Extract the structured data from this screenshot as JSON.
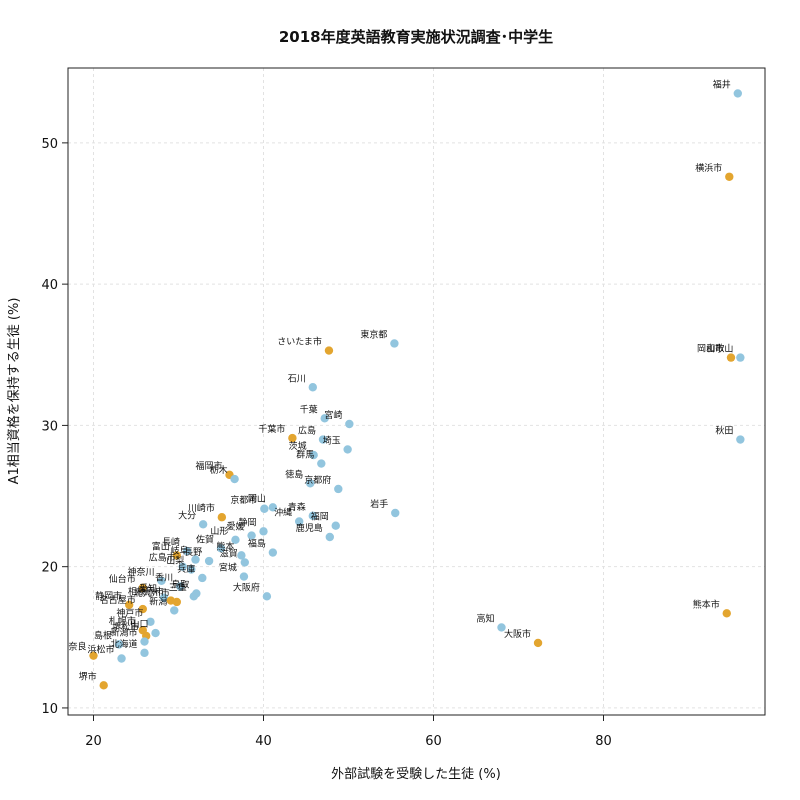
{
  "chart_data": {
    "type": "scatter",
    "title": "2018年度英語教育実施状況調査･中学生",
    "xlabel": "外部試験を受験した生徒 (%)",
    "ylabel": "A1相当資格を保持する生徒 (%)",
    "xlim": [
      17,
      99
    ],
    "ylim": [
      9.5,
      55.3
    ],
    "xticks": [
      20,
      40,
      60,
      80
    ],
    "yticks": [
      10,
      20,
      30,
      40,
      50
    ],
    "grid": true,
    "colors": {
      "prefecture": "#92c5de",
      "city": "#e3a52f"
    },
    "points": [
      {
        "x": 95.8,
        "y": 53.5,
        "label": "福井",
        "group": "prefecture"
      },
      {
        "x": 94.8,
        "y": 47.6,
        "label": "横浜市",
        "group": "city"
      },
      {
        "x": 55.4,
        "y": 35.8,
        "label": "東京都",
        "group": "prefecture"
      },
      {
        "x": 47.7,
        "y": 35.3,
        "label": "さいたま市",
        "group": "city"
      },
      {
        "x": 95.0,
        "y": 34.8,
        "label": "岡山市",
        "group": "city"
      },
      {
        "x": 96.1,
        "y": 34.8,
        "label": "和歌山",
        "group": "prefecture"
      },
      {
        "x": 45.8,
        "y": 32.7,
        "label": "石川",
        "group": "prefecture"
      },
      {
        "x": 47.2,
        "y": 30.5,
        "label": "千葉",
        "group": "prefecture"
      },
      {
        "x": 50.1,
        "y": 30.1,
        "label": "宮崎",
        "group": "prefecture"
      },
      {
        "x": 43.4,
        "y": 29.1,
        "label": "千葉市",
        "group": "city"
      },
      {
        "x": 47.0,
        "y": 29.0,
        "label": "広島",
        "group": "prefecture"
      },
      {
        "x": 96.1,
        "y": 29.0,
        "label": "秋田",
        "group": "prefecture"
      },
      {
        "x": 49.9,
        "y": 28.3,
        "label": "埼玉",
        "group": "prefecture"
      },
      {
        "x": 45.9,
        "y": 27.9,
        "label": "茨城",
        "group": "prefecture"
      },
      {
        "x": 46.8,
        "y": 27.3,
        "label": "群馬",
        "group": "prefecture"
      },
      {
        "x": 36.0,
        "y": 26.5,
        "label": "福岡市",
        "group": "city"
      },
      {
        "x": 36.6,
        "y": 26.2,
        "label": "栃木",
        "group": "prefecture"
      },
      {
        "x": 45.5,
        "y": 25.9,
        "label": "徳島",
        "group": "prefecture"
      },
      {
        "x": 48.8,
        "y": 25.5,
        "label": "京都府",
        "group": "prefecture"
      },
      {
        "x": 55.5,
        "y": 23.8,
        "label": "岩手",
        "group": "prefecture"
      },
      {
        "x": 41.1,
        "y": 24.2,
        "label": "岡山",
        "group": "prefecture"
      },
      {
        "x": 40.1,
        "y": 24.1,
        "label": "京都市",
        "group": "prefecture"
      },
      {
        "x": 45.8,
        "y": 23.6,
        "label": "青森",
        "group": "prefecture"
      },
      {
        "x": 35.1,
        "y": 23.5,
        "label": "川崎市",
        "group": "city"
      },
      {
        "x": 44.2,
        "y": 23.2,
        "label": "沖縄",
        "group": "prefecture"
      },
      {
        "x": 48.5,
        "y": 22.9,
        "label": "福岡",
        "group": "prefecture"
      },
      {
        "x": 32.9,
        "y": 23.0,
        "label": "大分",
        "group": "prefecture"
      },
      {
        "x": 40.0,
        "y": 22.5,
        "label": "静岡",
        "group": "prefecture"
      },
      {
        "x": 47.8,
        "y": 22.1,
        "label": "鹿児島",
        "group": "prefecture"
      },
      {
        "x": 38.6,
        "y": 22.2,
        "label": "愛媛",
        "group": "prefecture"
      },
      {
        "x": 36.7,
        "y": 21.9,
        "label": "山形",
        "group": "prefecture"
      },
      {
        "x": 41.1,
        "y": 21.0,
        "label": "福島",
        "group": "prefecture"
      },
      {
        "x": 37.4,
        "y": 20.8,
        "label": "熊本",
        "group": "prefecture"
      },
      {
        "x": 35.0,
        "y": 21.3,
        "label": "佐賀",
        "group": "prefecture"
      },
      {
        "x": 31.0,
        "y": 21.1,
        "label": "長崎",
        "group": "prefecture"
      },
      {
        "x": 29.8,
        "y": 20.8,
        "label": "富山",
        "group": "city"
      },
      {
        "x": 32.0,
        "y": 20.5,
        "label": "岐阜",
        "group": "prefecture"
      },
      {
        "x": 33.6,
        "y": 20.4,
        "label": "長野",
        "group": "prefecture"
      },
      {
        "x": 37.8,
        "y": 20.3,
        "label": "滋賀",
        "group": "prefecture"
      },
      {
        "x": 30.5,
        "y": 20.0,
        "label": "広島市",
        "group": "prefecture"
      },
      {
        "x": 31.5,
        "y": 19.8,
        "label": "山梨",
        "group": "prefecture"
      },
      {
        "x": 32.8,
        "y": 19.2,
        "label": "兵庫",
        "group": "prefecture"
      },
      {
        "x": 37.7,
        "y": 19.3,
        "label": "宮城",
        "group": "prefecture"
      },
      {
        "x": 28.0,
        "y": 19.0,
        "label": "神奈川",
        "group": "prefecture"
      },
      {
        "x": 30.2,
        "y": 18.6,
        "label": "香川",
        "group": "prefecture"
      },
      {
        "x": 32.1,
        "y": 18.1,
        "label": "鳥取",
        "group": "prefecture"
      },
      {
        "x": 25.8,
        "y": 18.5,
        "label": "仙台市",
        "group": "city"
      },
      {
        "x": 31.8,
        "y": 17.9,
        "label": "三重",
        "group": "prefecture"
      },
      {
        "x": 40.4,
        "y": 17.9,
        "label": "大阪府",
        "group": "prefecture"
      },
      {
        "x": 28.3,
        "y": 17.8,
        "label": "愛知",
        "group": "prefecture"
      },
      {
        "x": 29.1,
        "y": 17.6,
        "label": "相模原市",
        "group": "city"
      },
      {
        "x": 29.8,
        "y": 17.5,
        "label": "北九州市",
        "group": "city"
      },
      {
        "x": 24.2,
        "y": 17.3,
        "label": "静岡市",
        "group": "city"
      },
      {
        "x": 25.8,
        "y": 17.0,
        "label": "名古屋市",
        "group": "city"
      },
      {
        "x": 29.5,
        "y": 16.9,
        "label": "新潟",
        "group": "prefecture"
      },
      {
        "x": 94.5,
        "y": 16.7,
        "label": "熊本市",
        "group": "city"
      },
      {
        "x": 26.7,
        "y": 16.1,
        "label": "神戸市",
        "group": "prefecture"
      },
      {
        "x": 68.0,
        "y": 15.7,
        "label": "高知",
        "group": "prefecture"
      },
      {
        "x": 25.8,
        "y": 15.5,
        "label": "札幌市",
        "group": "city"
      },
      {
        "x": 27.3,
        "y": 15.3,
        "label": "山口",
        "group": "prefecture"
      },
      {
        "x": 26.2,
        "y": 15.1,
        "label": "堺松市",
        "group": "city"
      },
      {
        "x": 26.0,
        "y": 14.7,
        "label": "新潟市",
        "group": "prefecture"
      },
      {
        "x": 72.3,
        "y": 14.6,
        "label": "大阪市",
        "group": "city"
      },
      {
        "x": 23.0,
        "y": 14.5,
        "label": "島根",
        "group": "prefecture"
      },
      {
        "x": 20.0,
        "y": 13.7,
        "label": "奈良",
        "group": "city"
      },
      {
        "x": 26.0,
        "y": 13.9,
        "label": "北海道",
        "group": "prefecture"
      },
      {
        "x": 23.3,
        "y": 13.5,
        "label": "浜松市",
        "group": "prefecture"
      },
      {
        "x": 21.2,
        "y": 11.6,
        "label": "堺市",
        "group": "city"
      }
    ]
  }
}
